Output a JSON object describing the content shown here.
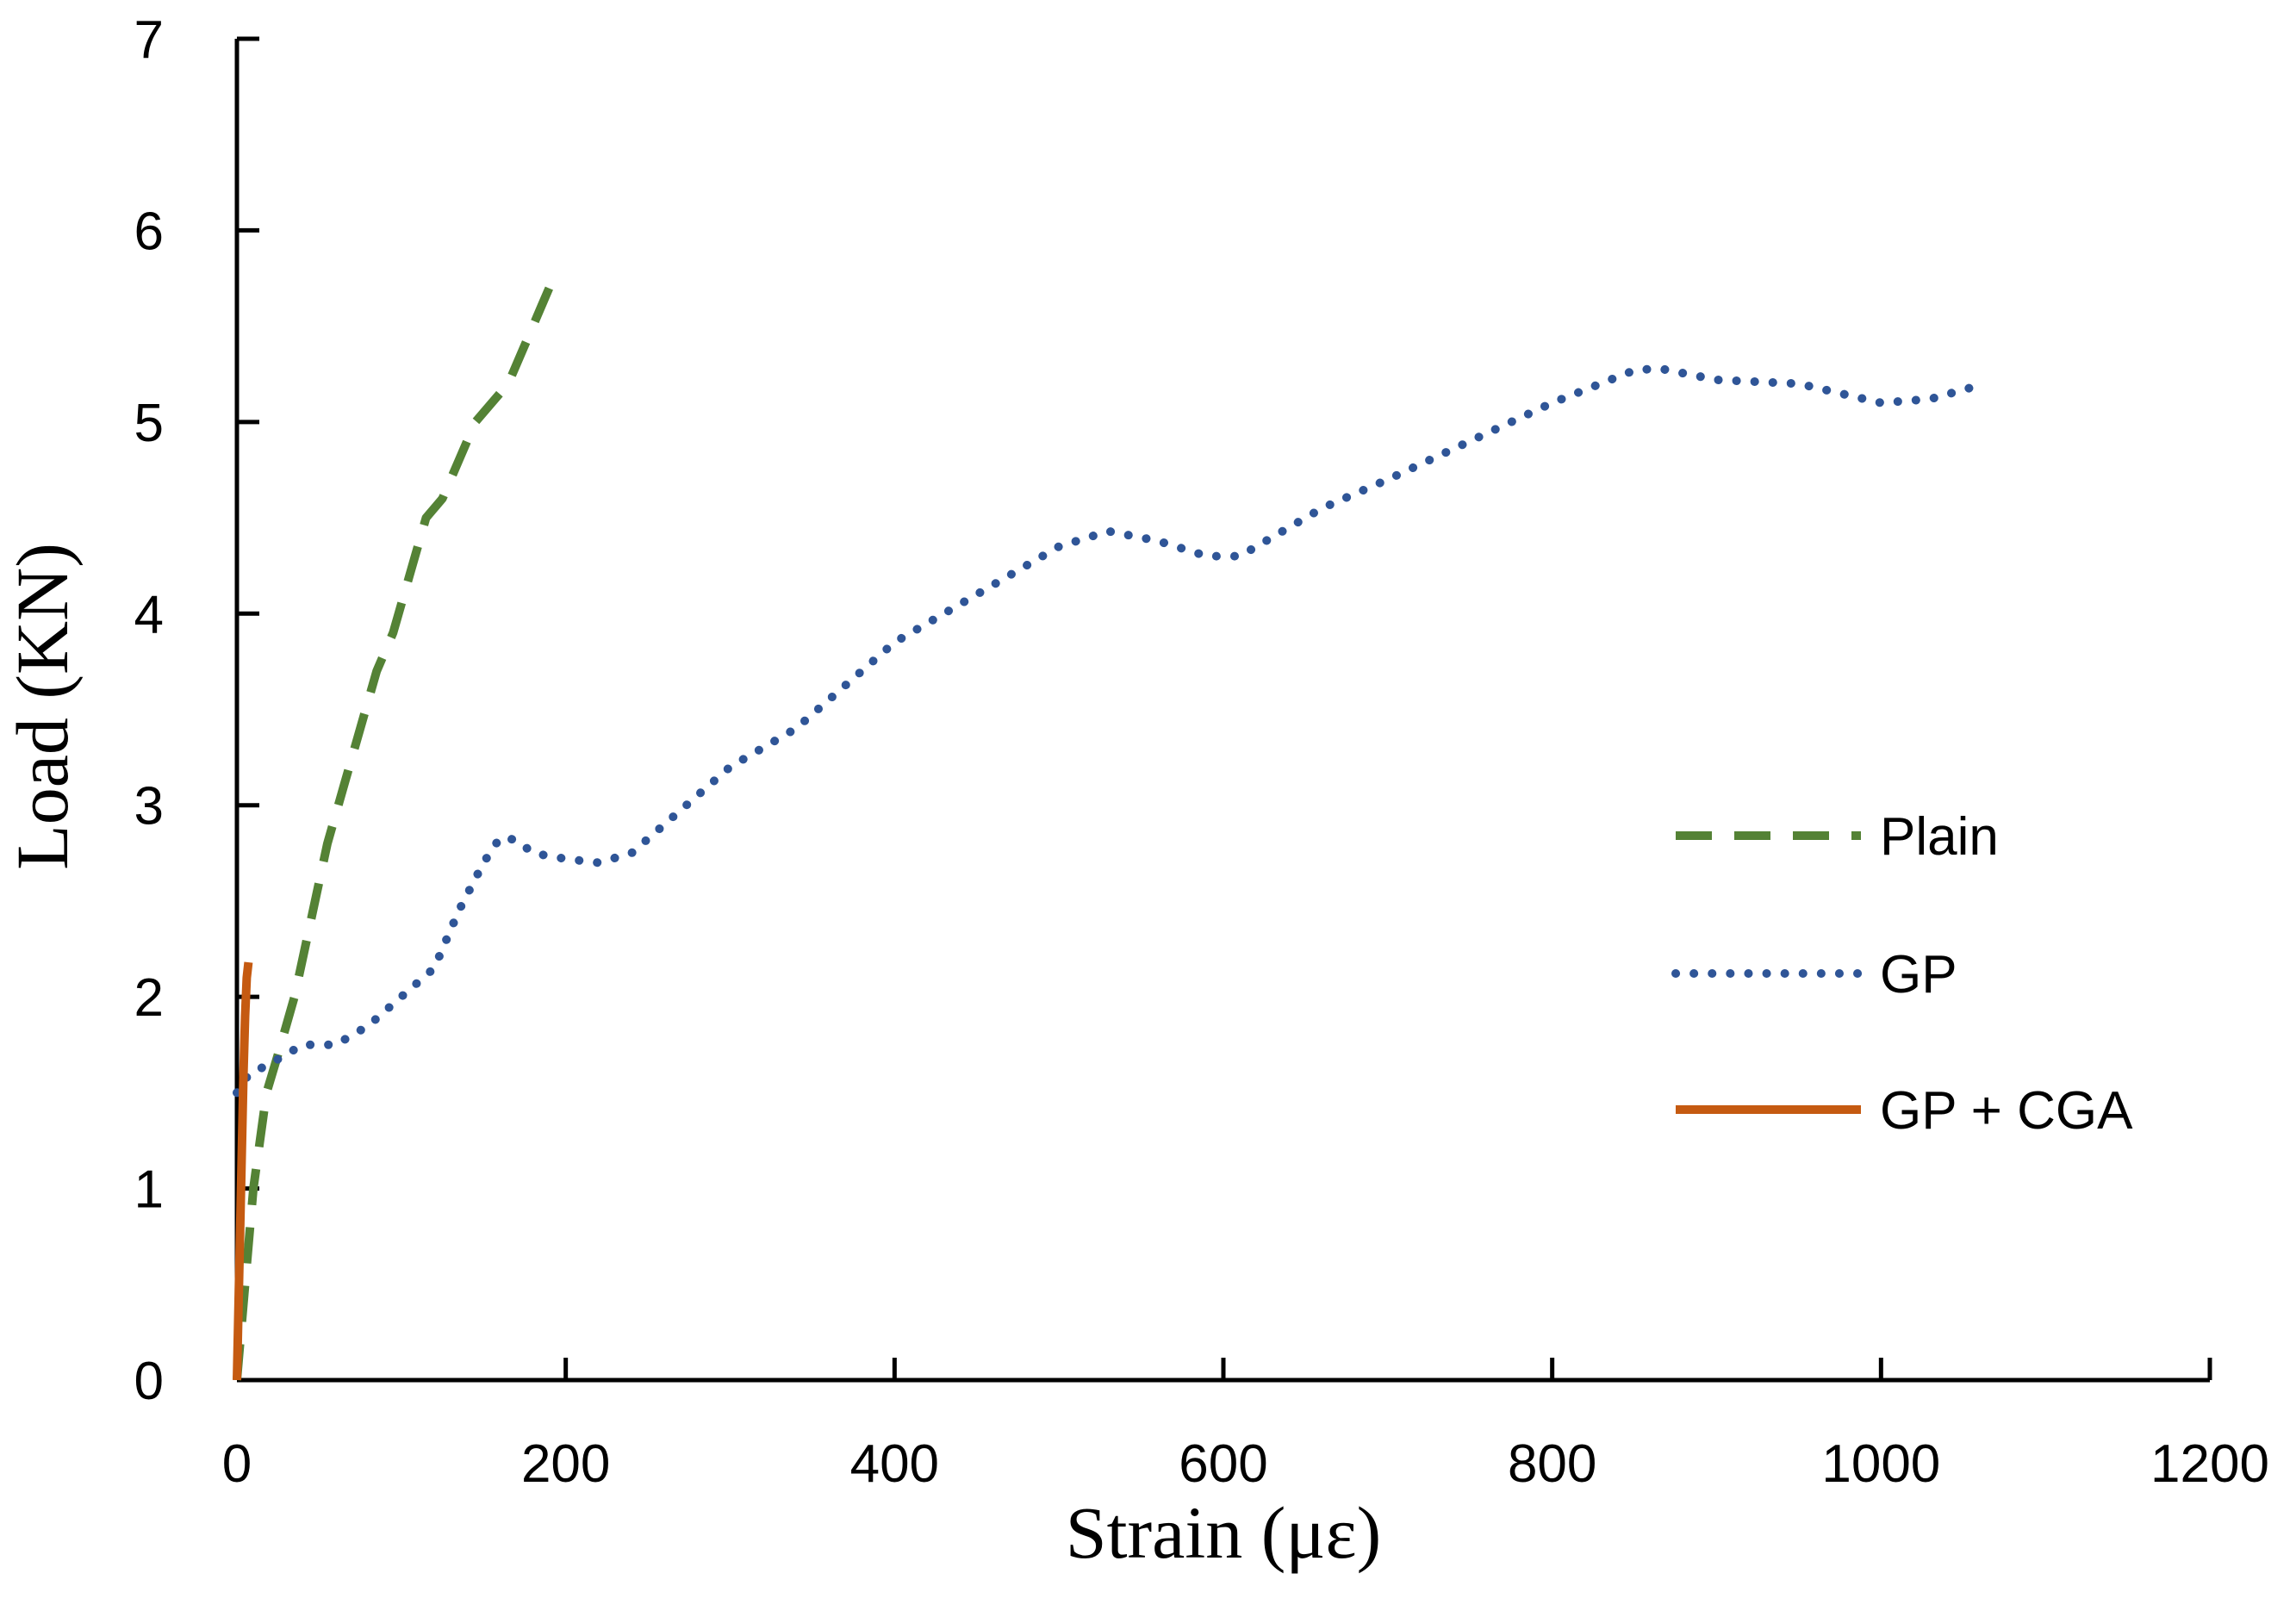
{
  "chart_data": {
    "type": "line",
    "title": "",
    "xlabel": "Strain (με)",
    "ylabel": "Load (KN)",
    "xlim": [
      0,
      1200
    ],
    "ylim": [
      0,
      7
    ],
    "xticks": [
      "0",
      "200",
      "400",
      "600",
      "800",
      "1000",
      "1200"
    ],
    "yticks": [
      "0",
      "1",
      "2",
      "3",
      "4",
      "5",
      "6",
      "7"
    ],
    "grid": false,
    "legend_position": "right",
    "series": [
      {
        "name": "Plain",
        "color": "#548235",
        "style": "dashed",
        "x": [
          0,
          5,
          10,
          18,
          25,
          35,
          45,
          55,
          65,
          75,
          85,
          95,
          105,
          115,
          125,
          135,
          145,
          155,
          165,
          175,
          185,
          195
        ],
        "y": [
          0,
          0.5,
          1.0,
          1.5,
          1.7,
          2.0,
          2.4,
          2.8,
          3.1,
          3.4,
          3.7,
          3.9,
          4.2,
          4.5,
          4.6,
          4.8,
          5.0,
          5.1,
          5.2,
          5.4,
          5.6,
          5.8
        ]
      },
      {
        "name": "GP",
        "color": "#2F5597",
        "style": "dotted",
        "x": [
          0,
          3,
          8,
          20,
          40,
          60,
          80,
          100,
          120,
          135,
          150,
          160,
          170,
          180,
          200,
          220,
          240,
          260,
          280,
          300,
          320,
          340,
          360,
          380,
          400,
          430,
          460,
          500,
          530,
          560,
          590,
          610,
          630,
          660,
          700,
          750,
          800,
          850,
          865,
          900,
          950,
          1000,
          1030,
          1055
        ],
        "y": [
          1.5,
          1.55,
          1.6,
          1.65,
          1.75,
          1.75,
          1.85,
          2.0,
          2.15,
          2.45,
          2.7,
          2.83,
          2.82,
          2.75,
          2.72,
          2.7,
          2.75,
          2.9,
          3.05,
          3.2,
          3.3,
          3.4,
          3.55,
          3.7,
          3.85,
          4.0,
          4.15,
          4.35,
          4.43,
          4.38,
          4.3,
          4.3,
          4.4,
          4.55,
          4.7,
          4.9,
          5.1,
          5.27,
          5.28,
          5.22,
          5.2,
          5.1,
          5.12,
          5.18
        ]
      },
      {
        "name": "GP + CGA",
        "color": "#C55A11",
        "style": "solid",
        "x": [
          0,
          1,
          2,
          3,
          4,
          5,
          6,
          7
        ],
        "y": [
          0,
          0.4,
          0.8,
          1.2,
          1.6,
          1.9,
          2.1,
          2.18
        ]
      }
    ]
  }
}
